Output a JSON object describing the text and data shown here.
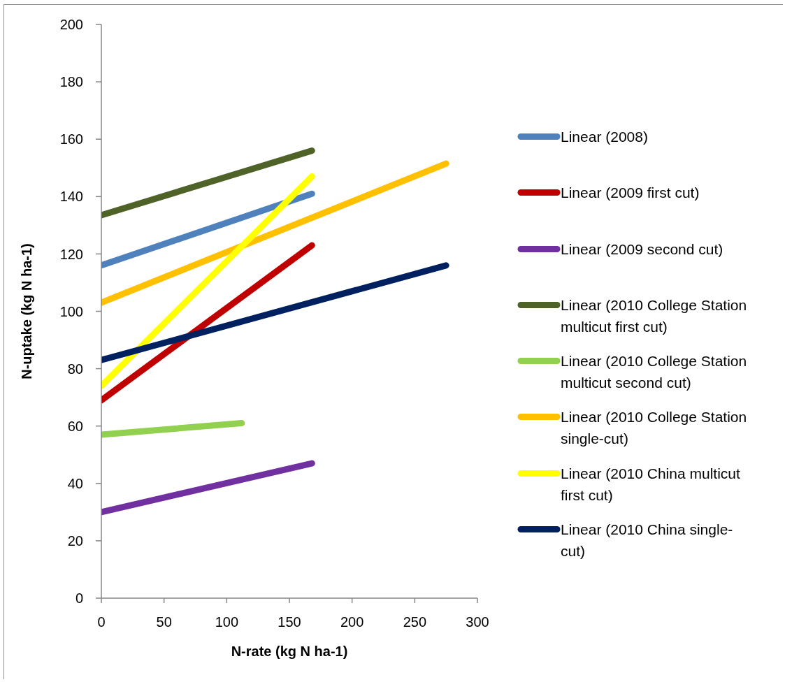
{
  "chart_data": {
    "type": "line",
    "xlabel": "N-rate (kg N ha-1)",
    "ylabel": "N-uptake (kg N ha-1)",
    "xlim": [
      0,
      300
    ],
    "xticks": [
      0,
      50,
      100,
      150,
      200,
      250,
      300
    ],
    "ylim": [
      0,
      200
    ],
    "yticks": [
      0,
      20,
      40,
      60,
      80,
      100,
      120,
      140,
      160,
      180,
      200
    ],
    "legend": "right",
    "series": [
      {
        "name": "Linear (2008)",
        "color": "#4f81bd",
        "x": [
          0,
          168
        ],
        "values": [
          116,
          141
        ]
      },
      {
        "name": "Linear (2009 first cut)",
        "color": "#c00000",
        "x": [
          0,
          168
        ],
        "values": [
          69,
          123
        ]
      },
      {
        "name": "Linear (2009 second cut)",
        "color": "#7030a0",
        "x": [
          0,
          168
        ],
        "values": [
          30,
          47
        ]
      },
      {
        "name": "Linear (2010 College Station multicut first cut)",
        "color": "#4f6228",
        "x": [
          0,
          168
        ],
        "values": [
          133.5,
          156
        ]
      },
      {
        "name": "Linear (2010 College Station multicut second cut)",
        "color": "#92d050",
        "x": [
          0,
          112
        ],
        "values": [
          57,
          61
        ]
      },
      {
        "name": "Linear (2010 College Station single-cut)",
        "color": "#ffc000",
        "x": [
          0,
          275
        ],
        "values": [
          103,
          151.5
        ]
      },
      {
        "name": "Linear (2010 China multicut first cut)",
        "color": "#ffff00",
        "x": [
          0,
          168
        ],
        "values": [
          74,
          147
        ]
      },
      {
        "name": "Linear (2010 China single-cut)",
        "color": "#002060",
        "x": [
          0,
          275
        ],
        "values": [
          83,
          116
        ]
      }
    ]
  }
}
